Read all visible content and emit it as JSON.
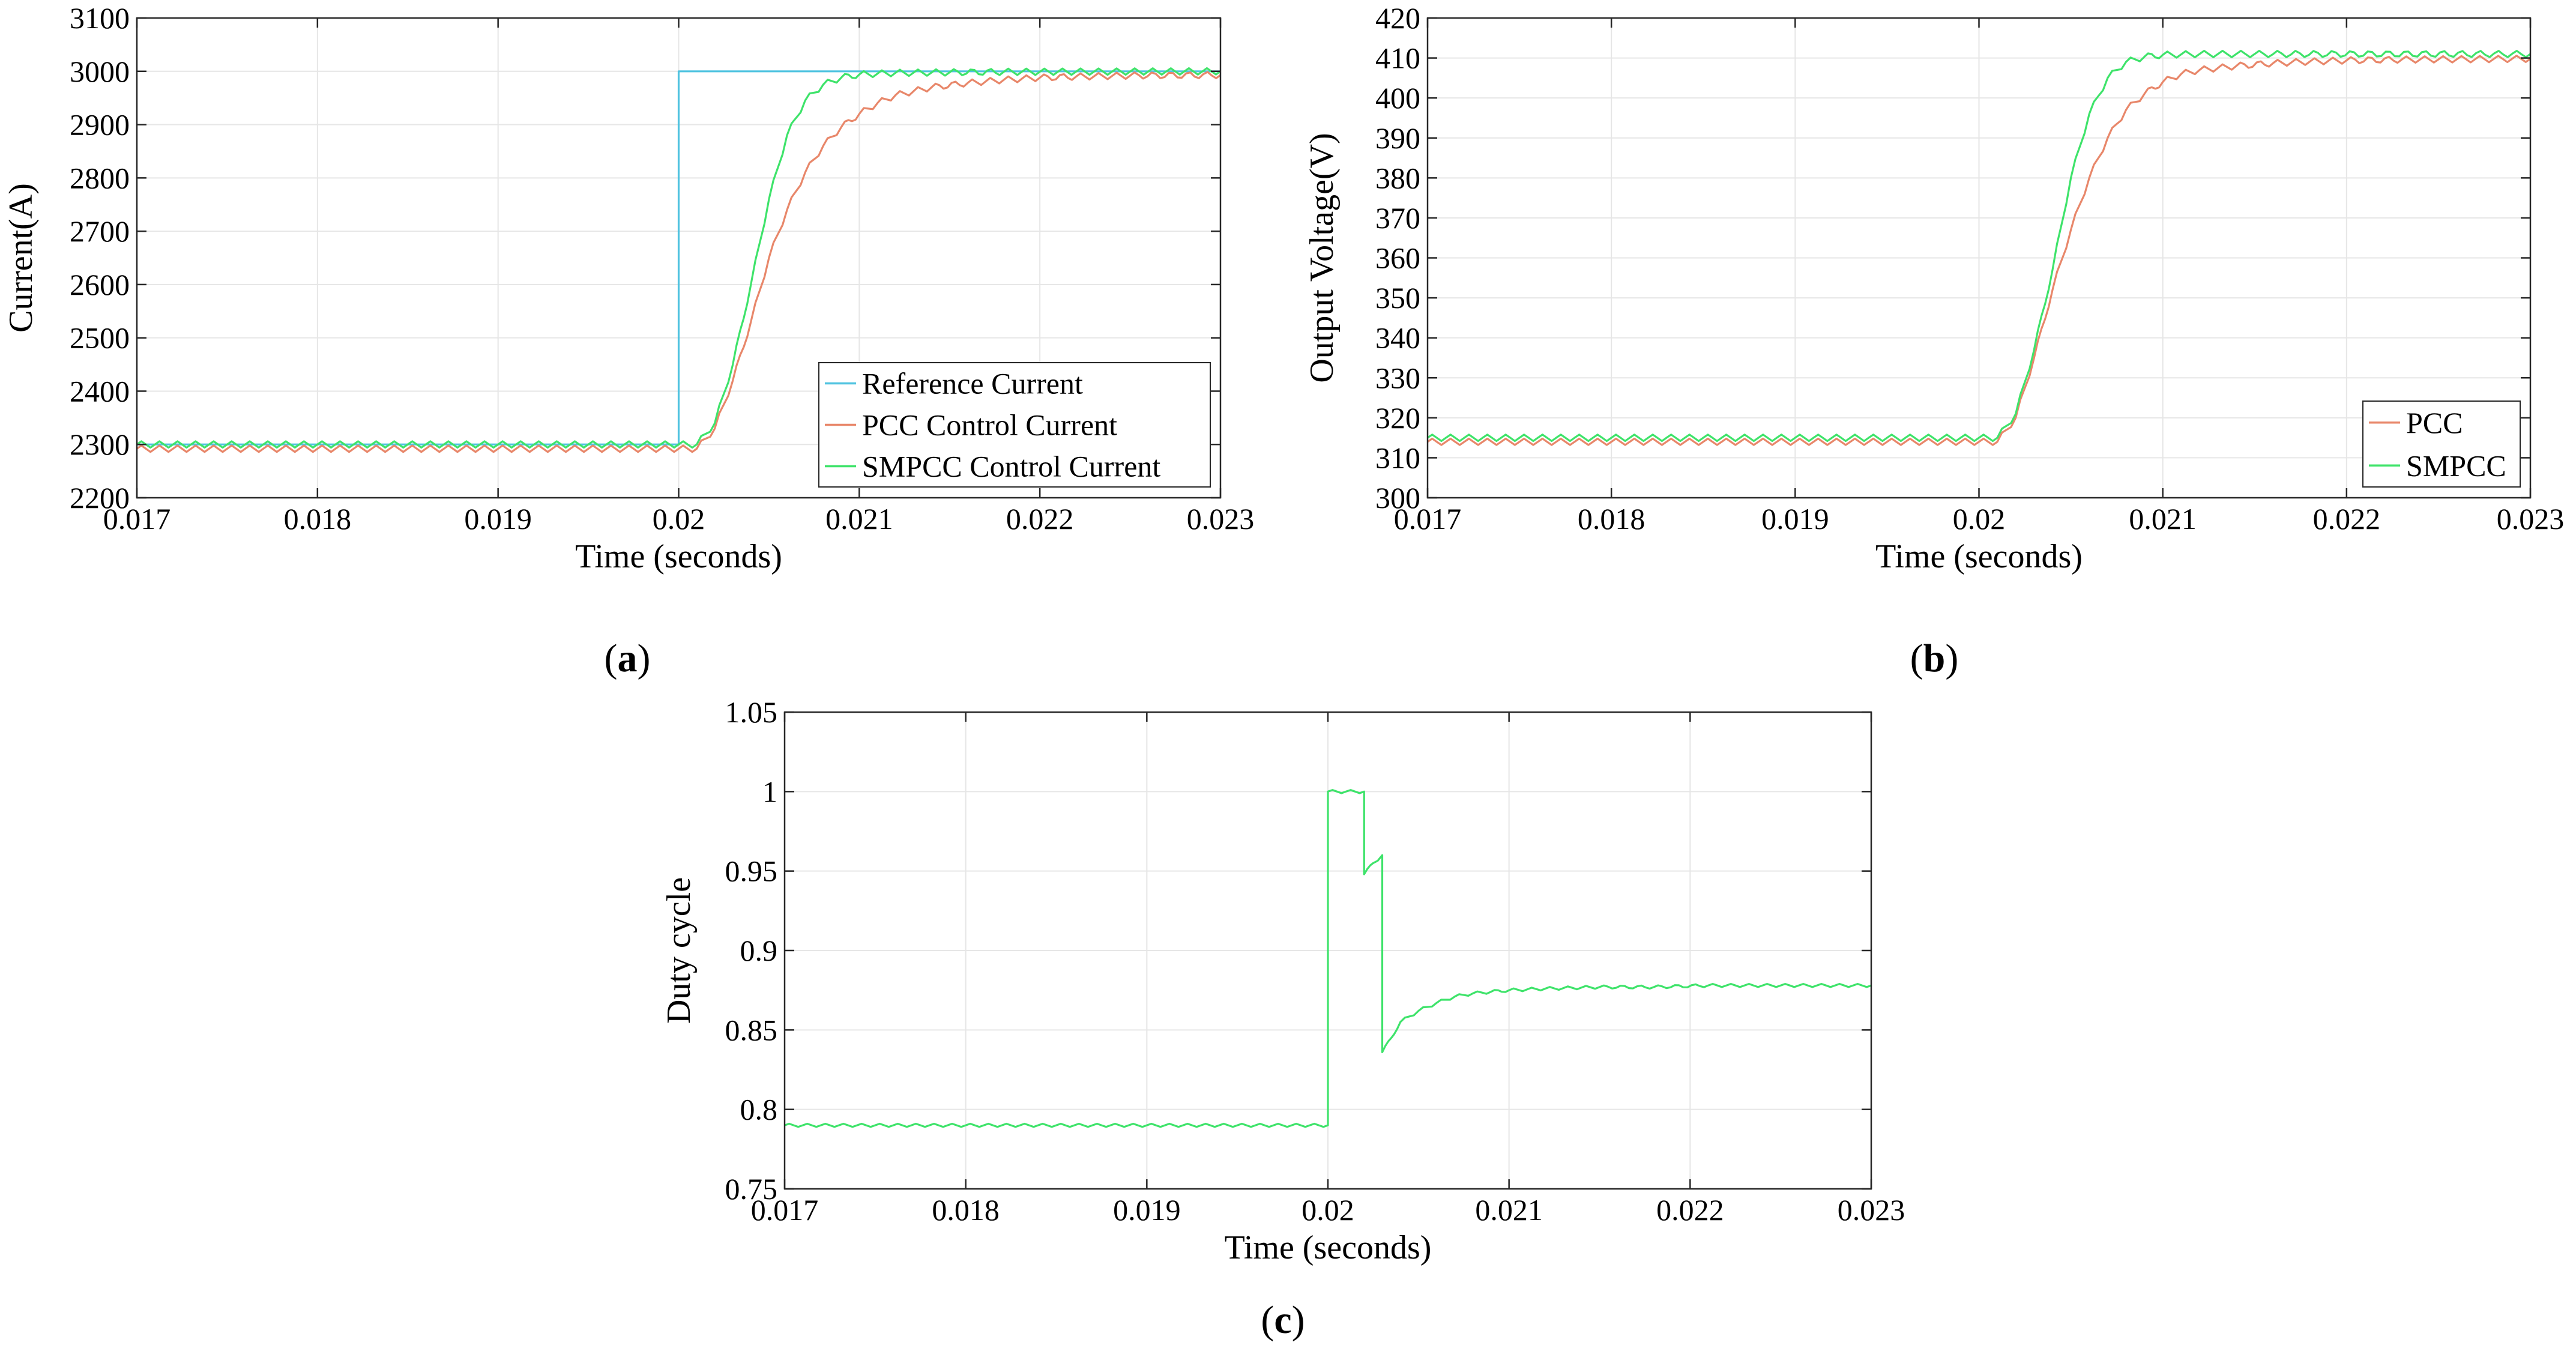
{
  "figure": {
    "captions": [
      {
        "open": "(",
        "letter": "a",
        "close": ")"
      },
      {
        "open": "(",
        "letter": "b",
        "close": ")"
      },
      {
        "open": "(",
        "letter": "c",
        "close": ")"
      }
    ]
  },
  "chart_data": [
    {
      "id": "a",
      "type": "line",
      "xlabel": "Time (seconds)",
      "ylabel": "Current(A)",
      "xlim": [
        0.017,
        0.023
      ],
      "ylim": [
        2200,
        3100
      ],
      "xticks": [
        0.017,
        0.018,
        0.019,
        0.02,
        0.021,
        0.022,
        0.023
      ],
      "xtick_labels": [
        "0.017",
        "0.018",
        "0.019",
        "0.02",
        "0.021",
        "0.022",
        "0.023"
      ],
      "yticks": [
        2200,
        2300,
        2400,
        2500,
        2600,
        2700,
        2800,
        2900,
        3000,
        3100
      ],
      "ytick_labels": [
        "2200",
        "2300",
        "2400",
        "2500",
        "2600",
        "2700",
        "2800",
        "2900",
        "3000",
        "3100"
      ],
      "grid": true,
      "legend": "bottom-right",
      "series": [
        {
          "name": "Reference Current",
          "color": "#4fc3e0",
          "x": [
            0.017,
            0.02,
            0.02,
            0.023
          ],
          "y": [
            2300,
            2300,
            3000,
            3000
          ]
        },
        {
          "name": "PCC Control Current",
          "color": "#e8876a",
          "ripple": 6,
          "x": [
            0.017,
            0.0201,
            0.0202,
            0.0203,
            0.0204,
            0.0205,
            0.0206,
            0.0207,
            0.0208,
            0.0209,
            0.021,
            0.0211,
            0.0212,
            0.0214,
            0.0216,
            0.0218,
            0.022,
            0.0222,
            0.0225,
            0.023
          ],
          "y": [
            2292,
            2292,
            2330,
            2420,
            2530,
            2650,
            2740,
            2810,
            2860,
            2895,
            2920,
            2940,
            2955,
            2970,
            2978,
            2984,
            2988,
            2990,
            2992,
            2993
          ]
        },
        {
          "name": "SMPCC Control Current",
          "color": "#3ee36a",
          "ripple": 6,
          "x": [
            0.017,
            0.0201,
            0.0202,
            0.0203,
            0.0204,
            0.0205,
            0.0206,
            0.0207,
            0.0208,
            0.0209,
            0.021,
            0.0212,
            0.0215,
            0.0218,
            0.023
          ],
          "y": [
            2300,
            2300,
            2340,
            2450,
            2600,
            2760,
            2880,
            2945,
            2975,
            2988,
            2994,
            2997,
            2998,
            2999,
            3000
          ]
        }
      ]
    },
    {
      "id": "b",
      "type": "line",
      "xlabel": "Time (seconds)",
      "ylabel": "Output Voltage(V)",
      "xlim": [
        0.017,
        0.023
      ],
      "ylim": [
        300,
        420
      ],
      "xticks": [
        0.017,
        0.018,
        0.019,
        0.02,
        0.021,
        0.022,
        0.023
      ],
      "xtick_labels": [
        "0.017",
        "0.018",
        "0.019",
        "0.02",
        "0.021",
        "0.022",
        "0.023"
      ],
      "yticks": [
        300,
        310,
        320,
        330,
        340,
        350,
        360,
        370,
        380,
        390,
        400,
        410,
        420
      ],
      "ytick_labels": [
        "300",
        "310",
        "320",
        "330",
        "340",
        "350",
        "360",
        "370",
        "380",
        "390",
        "400",
        "410",
        "420"
      ],
      "grid": true,
      "legend": "bottom-right",
      "series": [
        {
          "name": "PCC",
          "color": "#e8876a",
          "ripple": 0.8,
          "x": [
            0.017,
            0.0201,
            0.0202,
            0.0203,
            0.0204,
            0.0205,
            0.0206,
            0.0207,
            0.0208,
            0.0209,
            0.021,
            0.0211,
            0.0212,
            0.0214,
            0.0216,
            0.0218,
            0.022,
            0.0223,
            0.023
          ],
          "y": [
            314,
            314,
            320,
            335,
            352,
            367,
            380,
            390,
            397,
            401,
            404,
            406,
            407,
            408,
            408.7,
            409.1,
            409.4,
            409.6,
            409.8
          ]
        },
        {
          "name": "SMPCC",
          "color": "#3ee36a",
          "ripple": 0.8,
          "x": [
            0.017,
            0.0201,
            0.0202,
            0.0203,
            0.0204,
            0.0205,
            0.0206,
            0.0207,
            0.0208,
            0.0209,
            0.021,
            0.0212,
            0.0215,
            0.023
          ],
          "y": [
            315,
            315,
            321,
            337,
            357,
            380,
            396,
            405,
            409,
            410.3,
            410.8,
            411,
            411,
            411
          ]
        }
      ]
    },
    {
      "id": "c",
      "type": "line",
      "xlabel": "Time (seconds)",
      "ylabel": "Duty cycle",
      "xlim": [
        0.017,
        0.023
      ],
      "ylim": [
        0.75,
        1.05
      ],
      "xticks": [
        0.017,
        0.018,
        0.019,
        0.02,
        0.021,
        0.022,
        0.023
      ],
      "xtick_labels": [
        "0.017",
        "0.018",
        "0.019",
        "0.02",
        "0.021",
        "0.022",
        "0.023"
      ],
      "yticks": [
        0.75,
        0.8,
        0.85,
        0.9,
        0.95,
        1,
        1.05
      ],
      "ytick_labels": [
        "0.75",
        "0.8",
        "0.85",
        "0.9",
        "0.95",
        "1",
        "1.05"
      ],
      "grid": true,
      "legend": "none",
      "series": [
        {
          "color": "#3ee36a",
          "ripple": 0.001,
          "x": [
            0.017,
            0.02,
            0.02,
            0.0202,
            0.0202,
            0.02025,
            0.0203,
            0.0203,
            0.02035,
            0.0204,
            0.0205,
            0.0206,
            0.0207,
            0.0208,
            0.0209,
            0.021,
            0.0212,
            0.0215,
            0.0218,
            0.0221,
            0.023
          ],
          "y": [
            0.79,
            0.79,
            1.0,
            1.0,
            0.948,
            0.955,
            0.96,
            0.836,
            0.845,
            0.855,
            0.862,
            0.867,
            0.871,
            0.873,
            0.874,
            0.875,
            0.876,
            0.877,
            0.877,
            0.878,
            0.878
          ]
        }
      ]
    }
  ]
}
